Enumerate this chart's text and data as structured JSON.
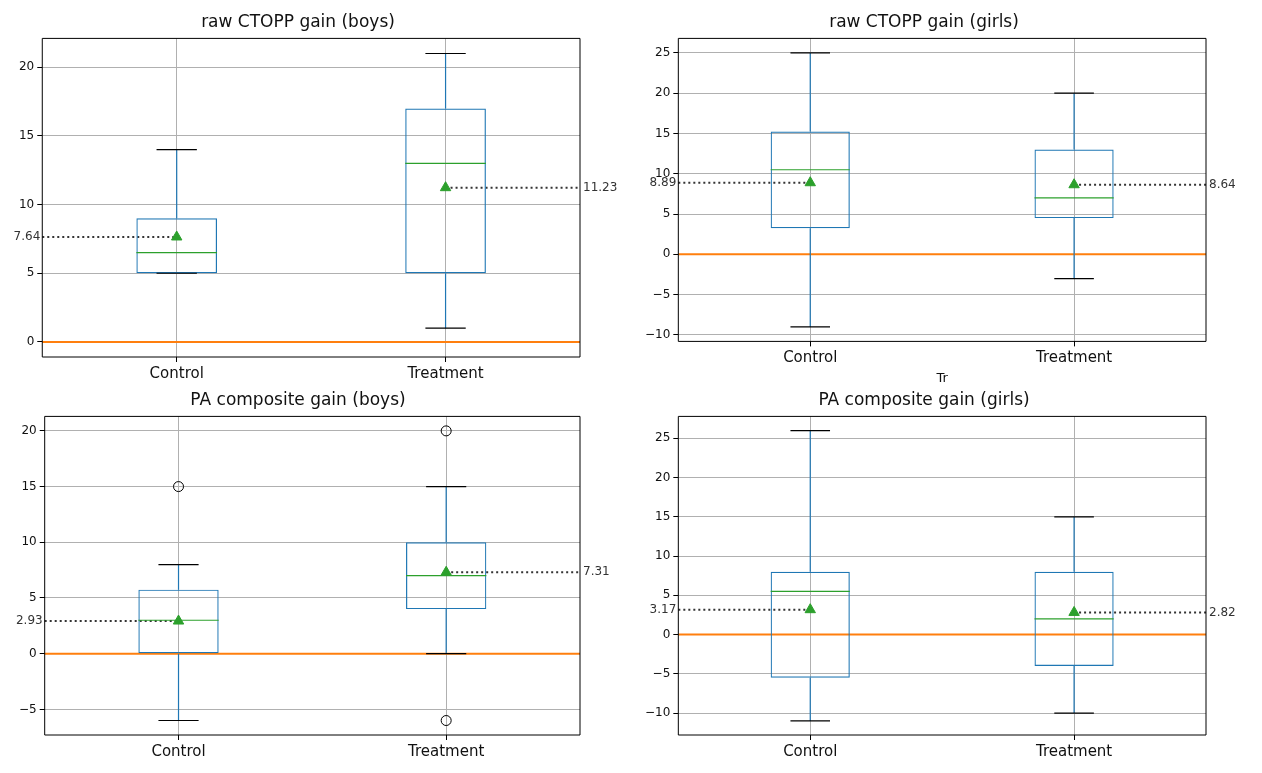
{
  "chart_data": [
    {
      "type": "box",
      "title": "raw CTOPP gain (boys)",
      "categories": [
        "Control",
        "Treatment"
      ],
      "color": "#1f77b4",
      "boxes": [
        {
          "low": 5,
          "q1": 5,
          "median": 6.5,
          "q3": 9,
          "high": 14,
          "mean": 7.64
        },
        {
          "low": 1,
          "q1": 5,
          "median": 13,
          "q3": 17,
          "high": 21,
          "mean": 11.23
        }
      ],
      "ylim": [
        -1.1,
        22.1
      ],
      "yticks": [
        0,
        5,
        10,
        15,
        20
      ],
      "grid": true,
      "ref_lines": [
        {
          "axis": "y",
          "value": 0,
          "color": "#ff7f0e"
        },
        {
          "axis": "y",
          "value": 7.64,
          "label": "7.64",
          "color": "#333333",
          "line_style": "dotted"
        },
        {
          "axis": "y",
          "value": 11.23,
          "label": "11.23",
          "color": "#333333",
          "line_style": "dotted"
        }
      ]
    },
    {
      "type": "box",
      "title": "raw CTOPP gain (girls)",
      "xlabel": "Tr",
      "categories": [
        "Control",
        "Treatment"
      ],
      "color": "#1f77b4",
      "boxes": [
        {
          "low": -9,
          "q1": 3.25,
          "median": 10.5,
          "q3": 15.25,
          "high": 25,
          "mean": 8.89
        },
        {
          "low": -3,
          "q1": 4.5,
          "median": 7,
          "q3": 13,
          "high": 20,
          "mean": 8.64
        }
      ],
      "ylim": [
        -10.8,
        26.8
      ],
      "yticks": [
        -10,
        -5,
        0,
        5,
        10,
        15,
        20,
        25
      ],
      "grid": true,
      "ref_lines": [
        {
          "axis": "y",
          "value": 0,
          "color": "#ff7f0e"
        },
        {
          "axis": "y",
          "value": 8.89,
          "label": "8.89",
          "color": "#333333",
          "line_style": "dotted"
        },
        {
          "axis": "y",
          "value": 8.64,
          "label": "8.64",
          "color": "#333333",
          "line_style": "dotted"
        }
      ]
    },
    {
      "type": "box",
      "title": "PA composite gain (boys)",
      "categories": [
        "Control",
        "Treatment"
      ],
      "color": "#1f77b4",
      "boxes": [
        {
          "low": -6,
          "q1": 0,
          "median": 3,
          "q3": 5.75,
          "high": 8,
          "mean": 2.93,
          "outliers": [
            15
          ]
        },
        {
          "low": 0,
          "q1": 4,
          "median": 7,
          "q3": 10,
          "high": 15,
          "mean": 7.31,
          "outliers": [
            20,
            -6
          ]
        }
      ],
      "ylim": [
        -7.3,
        21.3
      ],
      "yticks": [
        -5,
        0,
        5,
        10,
        15,
        20
      ],
      "grid": true,
      "ref_lines": [
        {
          "axis": "y",
          "value": 0,
          "color": "#ff7f0e"
        },
        {
          "axis": "y",
          "value": 2.93,
          "label": "2.93",
          "color": "#333333",
          "line_style": "dotted"
        },
        {
          "axis": "y",
          "value": 7.31,
          "label": "7.31",
          "color": "#333333",
          "line_style": "dotted"
        }
      ]
    },
    {
      "type": "box",
      "title": "PA composite gain (girls)",
      "categories": [
        "Control",
        "Treatment"
      ],
      "color": "#1f77b4",
      "boxes": [
        {
          "low": -11,
          "q1": -5.5,
          "median": 5.5,
          "q3": 8,
          "high": 26,
          "mean": 3.17
        },
        {
          "low": -10,
          "q1": -4,
          "median": 2,
          "q3": 8,
          "high": 15,
          "mean": 2.82
        }
      ],
      "ylim": [
        -12.8,
        27.8
      ],
      "yticks": [
        -10,
        -5,
        0,
        5,
        10,
        15,
        20,
        25
      ],
      "grid": true,
      "ref_lines": [
        {
          "axis": "y",
          "value": 0,
          "color": "#ff7f0e"
        },
        {
          "axis": "y",
          "value": 3.17,
          "label": "3.17",
          "color": "#333333",
          "line_style": "dotted"
        },
        {
          "axis": "y",
          "value": 2.82,
          "label": "2.82",
          "color": "#333333",
          "line_style": "dotted"
        }
      ]
    }
  ]
}
